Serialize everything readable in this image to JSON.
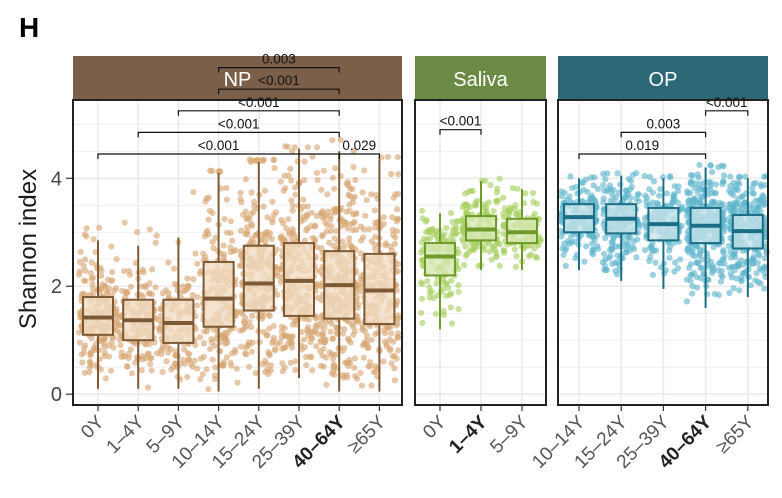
{
  "panel_letter": "H",
  "chart_data": {
    "type": "box",
    "ylabel": "Shannon index",
    "ylim": [
      -0.2,
      5.45
    ],
    "yticks": [
      0,
      2,
      4
    ],
    "grid": true,
    "facets": [
      {
        "name": "NP",
        "color": "#7b5f48",
        "fill": "#f1dcc3",
        "stroke": "#7d5a35",
        "point_color": "#d7a772",
        "categories": [
          "0Y",
          "1–4Y",
          "5–9Y",
          "10–14Y",
          "15–24Y",
          "25–39Y",
          "40–64Y",
          "≥65Y"
        ],
        "bold": [
          false,
          false,
          false,
          false,
          false,
          false,
          true,
          false
        ],
        "n_points": [
          190,
          150,
          130,
          190,
          250,
          260,
          330,
          230
        ],
        "boxes": [
          {
            "low": 0.1,
            "q1": 1.1,
            "median": 1.42,
            "q3": 1.8,
            "high": 2.85,
            "pmax": 3.2
          },
          {
            "low": 0.1,
            "q1": 1.0,
            "median": 1.37,
            "q3": 1.75,
            "high": 2.75,
            "pmax": 3.5
          },
          {
            "low": 0.1,
            "q1": 0.95,
            "median": 1.32,
            "q3": 1.75,
            "high": 2.9,
            "pmax": 3.8
          },
          {
            "low": 0.05,
            "q1": 1.25,
            "median": 1.77,
            "q3": 2.45,
            "high": 4.1,
            "pmax": 4.15
          },
          {
            "low": 0.1,
            "q1": 1.55,
            "median": 2.05,
            "q3": 2.75,
            "high": 4.3,
            "pmax": 4.35
          },
          {
            "low": 0.3,
            "q1": 1.45,
            "median": 2.1,
            "q3": 2.8,
            "high": 4.55,
            "pmax": 4.6
          },
          {
            "low": 0.05,
            "q1": 1.4,
            "median": 2.02,
            "q3": 2.65,
            "high": 4.5,
            "pmax": 4.8
          },
          {
            "low": 0.05,
            "q1": 1.3,
            "median": 1.92,
            "q3": 2.6,
            "high": 4.35,
            "pmax": 4.4
          }
        ],
        "brackets": [
          {
            "from": "0Y",
            "to": "40–64Y",
            "label": "<0.001",
            "y": 4.45
          },
          {
            "from": "1–4Y",
            "to": "40–64Y",
            "label": "<0.001",
            "y": 4.85
          },
          {
            "from": "5–9Y",
            "to": "40–64Y",
            "label": "<0.001",
            "y": 5.25
          },
          {
            "from": "10–14Y",
            "to": "40–64Y",
            "label": "<0.001",
            "y": 5.65
          },
          {
            "from": "10–14Y",
            "to": "40–64Y",
            "label": "0.003",
            "y": 6.05
          },
          {
            "from": "40–64Y",
            "to": "≥65Y",
            "label": "0.029",
            "y": 4.45
          }
        ]
      },
      {
        "name": "Saliva",
        "color": "#6b8a44",
        "fill": "#d7e8b4",
        "stroke": "#6e9a2a",
        "point_color": "#a6cf5f",
        "categories": [
          "0Y",
          "1–4Y",
          "5–9Y"
        ],
        "bold": [
          false,
          true,
          false
        ],
        "n_points": [
          130,
          140,
          100
        ],
        "boxes": [
          {
            "low": 1.2,
            "q1": 2.2,
            "median": 2.55,
            "q3": 2.8,
            "high": 3.35,
            "pmax": 3.4
          },
          {
            "low": 2.3,
            "q1": 2.85,
            "median": 3.05,
            "q3": 3.3,
            "high": 3.95,
            "pmax": 4.0
          },
          {
            "low": 2.3,
            "q1": 2.8,
            "median": 3.0,
            "q3": 3.25,
            "high": 3.8,
            "pmax": 3.85
          }
        ],
        "brackets": [
          {
            "from": "0Y",
            "to": "1–4Y",
            "label": "<0.001",
            "y": 4.9
          }
        ]
      },
      {
        "name": "OP",
        "color": "#2d6877",
        "fill": "#c7e3ea",
        "stroke": "#1a6f86",
        "point_color": "#5fb4cc",
        "categories": [
          "10–14Y",
          "15–24Y",
          "25–39Y",
          "40–64Y",
          "≥65Y"
        ],
        "bold": [
          false,
          false,
          false,
          true,
          false
        ],
        "n_points": [
          170,
          180,
          150,
          300,
          280
        ],
        "boxes": [
          {
            "low": 2.3,
            "q1": 3.0,
            "median": 3.28,
            "q3": 3.52,
            "high": 4.0,
            "pmax": 4.05
          },
          {
            "low": 2.1,
            "q1": 2.98,
            "median": 3.25,
            "q3": 3.52,
            "high": 4.05,
            "pmax": 4.1
          },
          {
            "low": 1.95,
            "q1": 2.85,
            "median": 3.15,
            "q3": 3.45,
            "high": 4.0,
            "pmax": 4.05
          },
          {
            "low": 1.6,
            "q1": 2.8,
            "median": 3.12,
            "q3": 3.45,
            "high": 4.2,
            "pmax": 4.25
          },
          {
            "low": 1.8,
            "q1": 2.7,
            "median": 3.02,
            "q3": 3.32,
            "high": 4.0,
            "pmax": 4.05
          }
        ],
        "brackets": [
          {
            "from": "10–14Y",
            "to": "40–64Y",
            "label": "0.019",
            "y": 4.45
          },
          {
            "from": "15–24Y",
            "to": "40–64Y",
            "label": "0.003",
            "y": 4.85
          },
          {
            "from": "40–64Y",
            "to": "≥65Y",
            "label": "<0.001",
            "y": 5.25
          }
        ]
      }
    ]
  }
}
